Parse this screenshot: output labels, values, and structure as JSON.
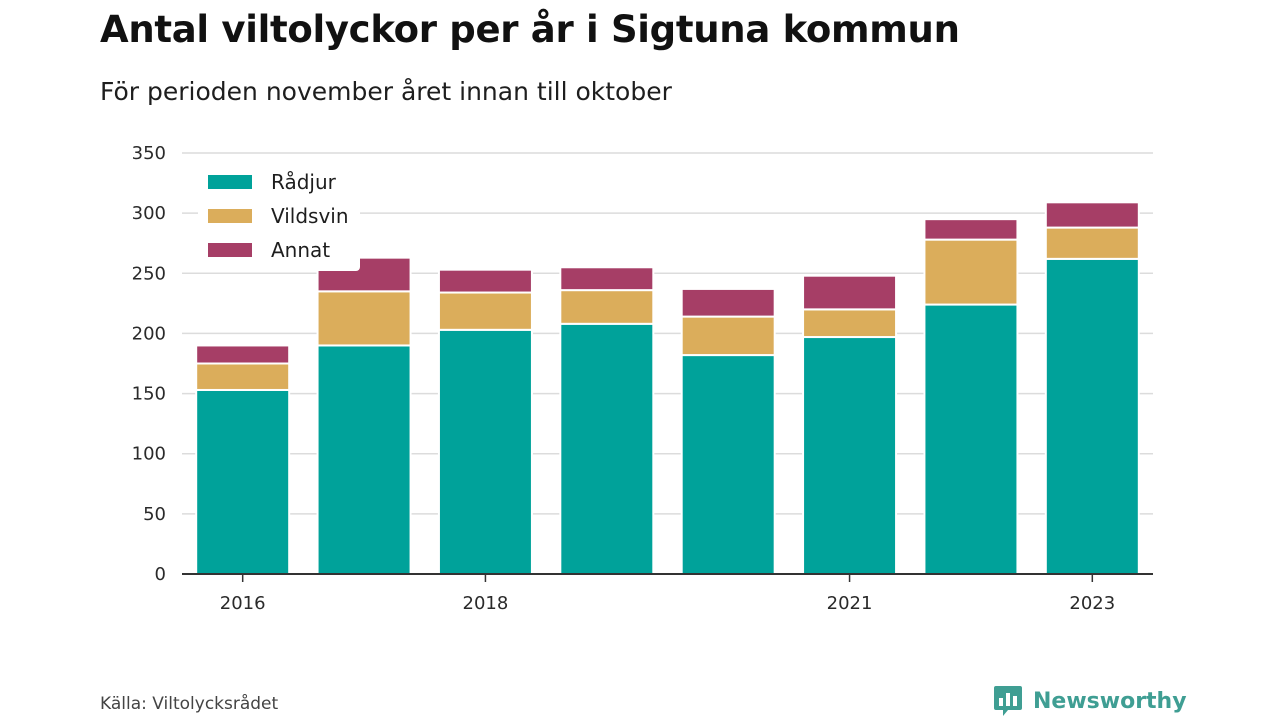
{
  "header": {
    "title": "Antal viltolyckor per år i Sigtuna kommun",
    "subtitle": "För perioden november året innan till oktober"
  },
  "footer": {
    "source": "Källa: Viltolycksrådet",
    "brand_name": "Newsworthy",
    "brand_icon": "newsworthy-logo-icon"
  },
  "chart_data": {
    "type": "bar",
    "stacked": true,
    "categories": [
      "2016",
      "2017",
      "2018",
      "2019",
      "2020",
      "2021",
      "2022",
      "2023"
    ],
    "x_tick_labels": [
      "2016",
      "",
      "2018",
      "",
      "",
      "2021",
      "",
      "2023"
    ],
    "series": [
      {
        "name": "Rådjur",
        "color": "#00a29a",
        "values": [
          153,
          190,
          203,
          208,
          182,
          197,
          224,
          262
        ]
      },
      {
        "name": "Vildsvin",
        "color": "#dbad5b",
        "values": [
          22,
          45,
          31,
          28,
          32,
          23,
          54,
          26
        ]
      },
      {
        "name": "Annat",
        "color": "#a63e66",
        "values": [
          15,
          28,
          19,
          19,
          23,
          28,
          17,
          21
        ]
      }
    ],
    "ylim": [
      0,
      350
    ],
    "y_ticks": [
      0,
      50,
      100,
      150,
      200,
      250,
      300,
      350
    ],
    "grid": true,
    "legend_position": "top-left"
  }
}
